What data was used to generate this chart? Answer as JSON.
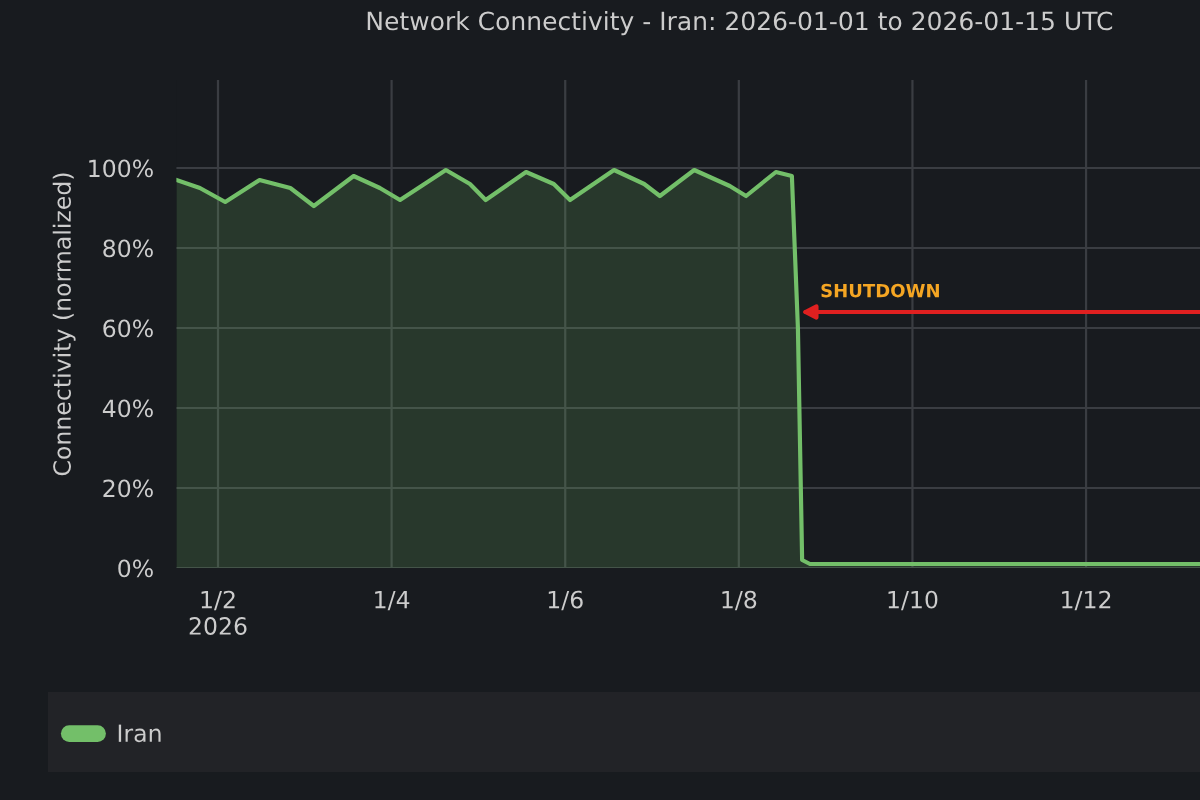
{
  "chart_data": {
    "type": "area",
    "title": "Network Connectivity - Iran: 2026-01-01 to 2026-01-15 UTC",
    "ylabel": "Connectivity (normalized)",
    "series": [
      {
        "name": "Iran",
        "color": "#73bf69",
        "x": [
          "2026-01-01T12:30",
          "2026-01-01T19:00",
          "2026-01-02T02:00",
          "2026-01-02T11:30",
          "2026-01-02T20:00",
          "2026-01-03T02:30",
          "2026-01-03T13:30",
          "2026-01-03T20:45",
          "2026-01-04T02:20",
          "2026-01-04T15:00",
          "2026-01-04T21:40",
          "2026-01-05T02:00",
          "2026-01-05T13:10",
          "2026-01-05T20:50",
          "2026-01-06T01:20",
          "2026-01-06T13:30",
          "2026-01-06T21:50",
          "2026-01-07T02:10",
          "2026-01-07T11:40",
          "2026-01-07T21:30",
          "2026-01-08T02:00",
          "2026-01-08T10:15",
          "2026-01-08T14:40",
          "2026-01-08T16:20",
          "2026-01-08T17:30",
          "2026-01-08T19:40",
          "2026-01-13T07:30"
        ],
        "values": [
          97,
          95,
          91.5,
          97,
          95,
          90.5,
          98,
          95,
          92,
          99.5,
          96,
          92,
          99,
          96,
          92,
          99.5,
          96,
          93,
          99.5,
          95.5,
          93,
          99,
          98,
          60,
          2,
          1,
          1
        ]
      }
    ],
    "xlim": [
      "2026-01-01T12:30",
      "2026-01-13T07:30"
    ],
    "xticks": [
      {
        "value": "2026-01-02",
        "label": "1/2\n2026"
      },
      {
        "value": "2026-01-04",
        "label": "1/4"
      },
      {
        "value": "2026-01-06",
        "label": "1/6"
      },
      {
        "value": "2026-01-08",
        "label": "1/8"
      },
      {
        "value": "2026-01-10",
        "label": "1/10"
      },
      {
        "value": "2026-01-12",
        "label": "1/12"
      }
    ],
    "ylim": [
      0,
      122
    ],
    "yticks": [
      {
        "value": 0,
        "label": "0%"
      },
      {
        "value": 20,
        "label": "20%"
      },
      {
        "value": 40,
        "label": "40%"
      },
      {
        "value": 60,
        "label": "60%"
      },
      {
        "value": 80,
        "label": "80%"
      },
      {
        "value": 100,
        "label": "100%"
      }
    ],
    "annotations": [
      {
        "text": "SHUTDOWN",
        "x": "2026-01-08T16:20",
        "y": 64
      }
    ],
    "grid": true,
    "legend": "bottom"
  }
}
